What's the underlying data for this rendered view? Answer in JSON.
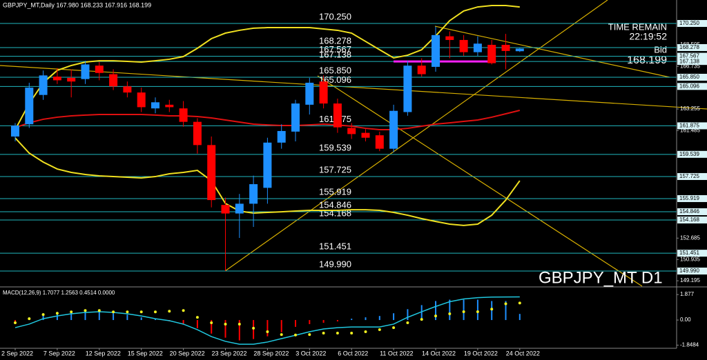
{
  "chart_data": {
    "type": "candlestick",
    "header": "GBPJPY_MT,Daily  167.980 168.233 167.916 168.199",
    "title": "GBPJPY_MT D1",
    "time_remain_label": "TIME REMAIN",
    "time_remain": "22:19:52",
    "bid_label": "Bid",
    "categories": [
      "2 Sep 2022",
      null,
      null,
      "7 Sep 2022",
      null,
      null,
      "12 Sep 2022",
      null,
      null,
      "15 Sep 2022",
      null,
      null,
      "20 Sep 2022",
      null,
      null,
      "23 Sep 2022",
      null,
      null,
      "28 Sep 2022",
      null,
      null,
      "3 Oct 2022",
      null,
      null,
      "6 Oct 2022",
      null,
      null,
      "11 Oct 2022",
      null,
      null,
      "14 Oct 2022",
      null,
      null,
      "19 Oct 2022",
      null,
      null,
      "24 Oct 2022"
    ],
    "open": [
      161.0,
      162.0,
      164.4,
      165.9,
      165.8,
      165.7,
      166.8,
      166.1,
      165.1,
      164.6,
      163.3,
      163.6,
      163.3,
      162.2,
      160.3,
      155.4,
      154.7,
      155.5,
      156.8,
      160.5,
      161.4,
      163.6,
      165.5,
      163.7,
      161.7,
      161.3,
      161.1,
      160.0,
      163.0,
      166.8,
      166.7,
      169.2,
      168.9,
      167.9,
      168.5,
      168.5,
      167.98
    ],
    "high": [
      162.1,
      165.4,
      166.4,
      166.6,
      166.5,
      167.2,
      167.1,
      166.5,
      165.5,
      165.0,
      164.2,
      164.0,
      163.9,
      162.5,
      161.0,
      156.0,
      156.3,
      157.8,
      160.9,
      162.0,
      164.0,
      165.8,
      166.0,
      164.1,
      162.1,
      161.6,
      161.4,
      163.6,
      167.2,
      167.4,
      170.0,
      169.6,
      169.3,
      169.2,
      168.9,
      169.4,
      168.233
    ],
    "low": [
      160.6,
      161.7,
      164.0,
      165.3,
      164.2,
      165.3,
      165.6,
      164.8,
      164.2,
      163.0,
      162.9,
      163.0,
      161.8,
      159.6,
      155.2,
      150.0,
      152.7,
      153.6,
      155.5,
      160.0,
      160.6,
      162.8,
      163.3,
      161.3,
      160.8,
      160.6,
      159.8,
      159.7,
      162.7,
      165.9,
      166.3,
      167.4,
      167.6,
      167.6,
      166.9,
      166.5,
      167.916
    ],
    "close": [
      161.9,
      165.0,
      166.0,
      165.6,
      165.5,
      166.9,
      166.2,
      165.1,
      164.6,
      163.4,
      163.8,
      163.4,
      162.2,
      160.3,
      155.8,
      154.7,
      155.5,
      157.1,
      160.5,
      161.45,
      163.7,
      165.4,
      163.7,
      161.75,
      161.2,
      160.9,
      160.0,
      163.1,
      166.8,
      166.1,
      169.3,
      168.9,
      167.9,
      168.6,
      167.0,
      168.0,
      168.199
    ],
    "up_color": "#1e90ff",
    "down_color": "#ff0000",
    "lines": [
      {
        "color": "#f0e020",
        "values": [
          161.56,
          163.7,
          165.4,
          166.41,
          166.81,
          167.09,
          167.2,
          167.2,
          167.15,
          167.09,
          167.2,
          167.32,
          167.54,
          168.22,
          169.01,
          169.46,
          169.69,
          169.86,
          169.91,
          169.91,
          169.91,
          169.91,
          169.8,
          169.69,
          169.46,
          168.78,
          168.1,
          167.43,
          167.65,
          168.1,
          169.23,
          170.48,
          171.27,
          171.6,
          171.72,
          171.72,
          171.6
        ]
      },
      {
        "color": "#f0e020",
        "values": [
          160.88,
          159.64,
          158.91,
          158.34,
          158.06,
          157.89,
          157.78,
          157.72,
          157.67,
          157.61,
          157.72,
          157.95,
          158.06,
          158.23,
          157.38,
          155.52,
          154.9,
          154.73,
          154.79,
          154.84,
          154.9,
          154.96,
          154.96,
          154.96,
          155.01,
          155.01,
          154.96,
          154.79,
          154.56,
          154.28,
          154.05,
          153.83,
          153.72,
          153.83,
          154.56,
          155.8,
          157.38
        ]
      },
      {
        "color": "#e01010",
        "values": [
          161.73,
          162.12,
          162.41,
          162.58,
          162.69,
          162.75,
          162.8,
          162.8,
          162.8,
          162.8,
          162.75,
          162.69,
          162.69,
          162.63,
          162.52,
          162.35,
          162.18,
          162.01,
          161.95,
          161.9,
          161.9,
          161.95,
          162.01,
          161.95,
          161.84,
          161.67,
          161.56,
          161.56,
          161.67,
          161.84,
          162.01,
          162.12,
          162.24,
          162.35,
          162.58,
          162.86,
          163.14
        ]
      }
    ],
    "level_color": "#20b8c0",
    "levels": [
      {
        "value": 170.25,
        "label": "170.250"
      },
      {
        "value": 168.278,
        "label": "168.278"
      },
      {
        "value": 167.567,
        "label": "167.567"
      },
      {
        "value": 167.138,
        "label": "167.138"
      },
      {
        "value": 165.85,
        "label": "165.850"
      },
      {
        "value": 165.096,
        "label": "165.096"
      },
      {
        "value": 161.875,
        "label": "161.875"
      },
      {
        "value": 159.539,
        "label": "159.539"
      },
      {
        "value": 157.725,
        "label": "157.725"
      },
      {
        "value": 155.919,
        "label": "155.919"
      },
      {
        "value": 154.846,
        "label": "154.846"
      },
      {
        "value": 154.168,
        "label": "154.168"
      },
      {
        "value": 151.451,
        "label": "151.451"
      },
      {
        "value": 149.99,
        "label": "149.990"
      }
    ],
    "ylim": [
      148.75,
      172.17
    ],
    "yticks": [
      168.505,
      166.735,
      163.255,
      161.485,
      152.685,
      150.935,
      149.195
    ],
    "macd": {
      "label": "MACD(12,26,9) 1.7077 1.2563 0.4514 0.0000",
      "ylim": [
        -2.08,
        2.34
      ],
      "yticks": [
        1.877,
        {
          "value": 0,
          "label": "0.00"
        },
        -1.8484
      ],
      "main": {
        "color": "#20c8e0",
        "values": [
          -0.56,
          -0.3,
          0.1,
          0.3,
          0.46,
          0.56,
          0.61,
          0.56,
          0.46,
          0.3,
          0.1,
          -0.05,
          -0.3,
          -0.71,
          -1.22,
          -1.57,
          -1.78,
          -1.78,
          -1.62,
          -1.37,
          -1.12,
          -0.86,
          -0.66,
          -0.56,
          -0.51,
          -0.51,
          -0.51,
          -0.3,
          0.2,
          0.61,
          1.0,
          1.35,
          1.55,
          1.65,
          1.69,
          1.7,
          1.7077
        ]
      },
      "signal": {
        "color": "#f0f020",
        "values": [
          -0.2,
          0.1,
          0.4,
          0.5,
          0.6,
          0.7,
          0.7,
          0.6,
          0.6,
          0.6,
          0.6,
          0.65,
          0.7,
          0.2,
          -0.2,
          -0.3,
          -0.3,
          -0.6,
          -0.86,
          -1.07,
          -1.1,
          -1.07,
          -0.96,
          -0.96,
          -0.96,
          -0.86,
          -0.71,
          -0.56,
          -0.2,
          0.05,
          0.3,
          0.46,
          0.61,
          0.61,
          0.8,
          1.2,
          1.2563
        ]
      },
      "histogram": [
        -0.3,
        0.2,
        0.5,
        0.6,
        0.6,
        0.7,
        0.6,
        0.5,
        0.4,
        0.2,
        0.1,
        -0.1,
        -0.3,
        -0.6,
        -1.0,
        -1.3,
        -1.5,
        -1.4,
        -1.2,
        -0.9,
        -0.5,
        -0.3,
        -0.2,
        -0.1,
        0.1,
        0.2,
        0.3,
        0.5,
        0.8,
        1.1,
        1.4,
        1.5,
        1.5,
        1.5,
        1.4,
        1.4,
        0.4514
      ],
      "up_color": "#1e90ff",
      "down_color": "#ff0000"
    }
  }
}
